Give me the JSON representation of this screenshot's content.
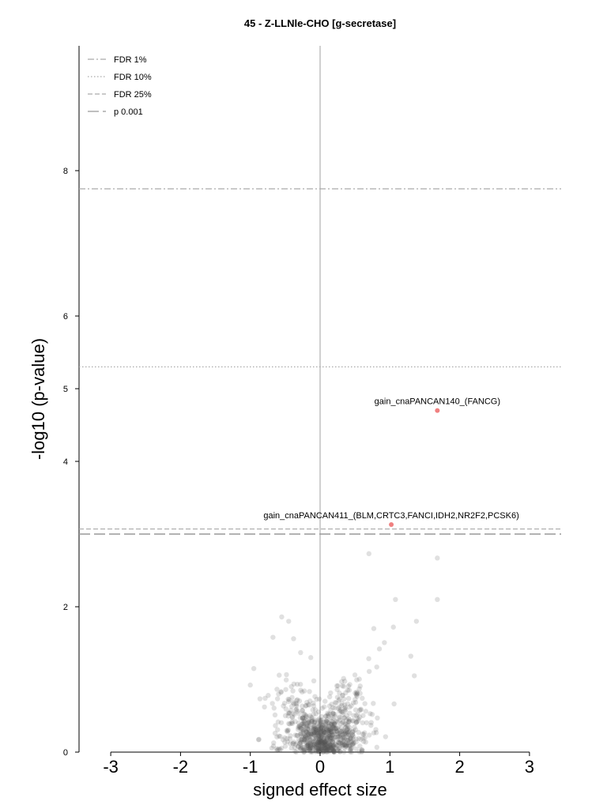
{
  "chart_data": {
    "type": "scatter",
    "title": "45 - Z-LLNle-CHO [g-secretase]",
    "xlabel": "signed effect size",
    "ylabel": "-log10 (p-value)",
    "xlim": [
      -3.4,
      3.4
    ],
    "ylim": [
      0,
      9.6
    ],
    "x_ticks": [
      "-3",
      "-2",
      "-1",
      "0",
      "1",
      "2",
      "3"
    ],
    "y_ticks": [
      "0",
      "2",
      "4",
      "5",
      "6",
      "8"
    ],
    "grid": false,
    "legend_position": "top-left",
    "thresholds": [
      {
        "name": "FDR 1%",
        "y": 7.75,
        "style": "dashdot",
        "color": "#aaaaaa"
      },
      {
        "name": "FDR 10%",
        "y": 5.3,
        "style": "dotted",
        "color": "#aaaaaa"
      },
      {
        "name": "FDR 25%",
        "y": 3.07,
        "style": "dashed",
        "color": "#aaaaaa"
      },
      {
        "name": "p 0.001",
        "y": 3.0,
        "style": "longdash",
        "color": "#999999"
      }
    ],
    "highlighted": [
      {
        "label": "gain_cnaPANCAN140_(FANCG)",
        "x": 1.68,
        "y": 4.7,
        "color": "#f08080"
      },
      {
        "label": "gain_cnaPANCAN411_(BLM,CRTC3,FANCI,IDH2,NR2F2,PCSK6)",
        "x": 1.02,
        "y": 3.13,
        "color": "#f08080"
      }
    ],
    "background_points": {
      "color": "#555555",
      "opacity": 0.18,
      "count": 900,
      "x_range": [
        -1.0,
        1.7
      ],
      "y_range": [
        0,
        2.7
      ],
      "notable": [
        {
          "x": 0.7,
          "y": 2.73
        },
        {
          "x": 1.68,
          "y": 2.67
        },
        {
          "x": 1.68,
          "y": 2.1
        },
        {
          "x": 1.08,
          "y": 2.1
        },
        {
          "x": -0.55,
          "y": 1.86
        },
        {
          "x": -0.45,
          "y": 1.8
        },
        {
          "x": 1.38,
          "y": 1.8
        },
        {
          "x": 1.05,
          "y": 1.72
        },
        {
          "x": -0.38,
          "y": 1.56
        },
        {
          "x": 1.3,
          "y": 1.32
        },
        {
          "x": 0.85,
          "y": 1.42
        },
        {
          "x": -0.95,
          "y": 1.15
        },
        {
          "x": 1.35,
          "y": 1.05
        }
      ]
    }
  }
}
